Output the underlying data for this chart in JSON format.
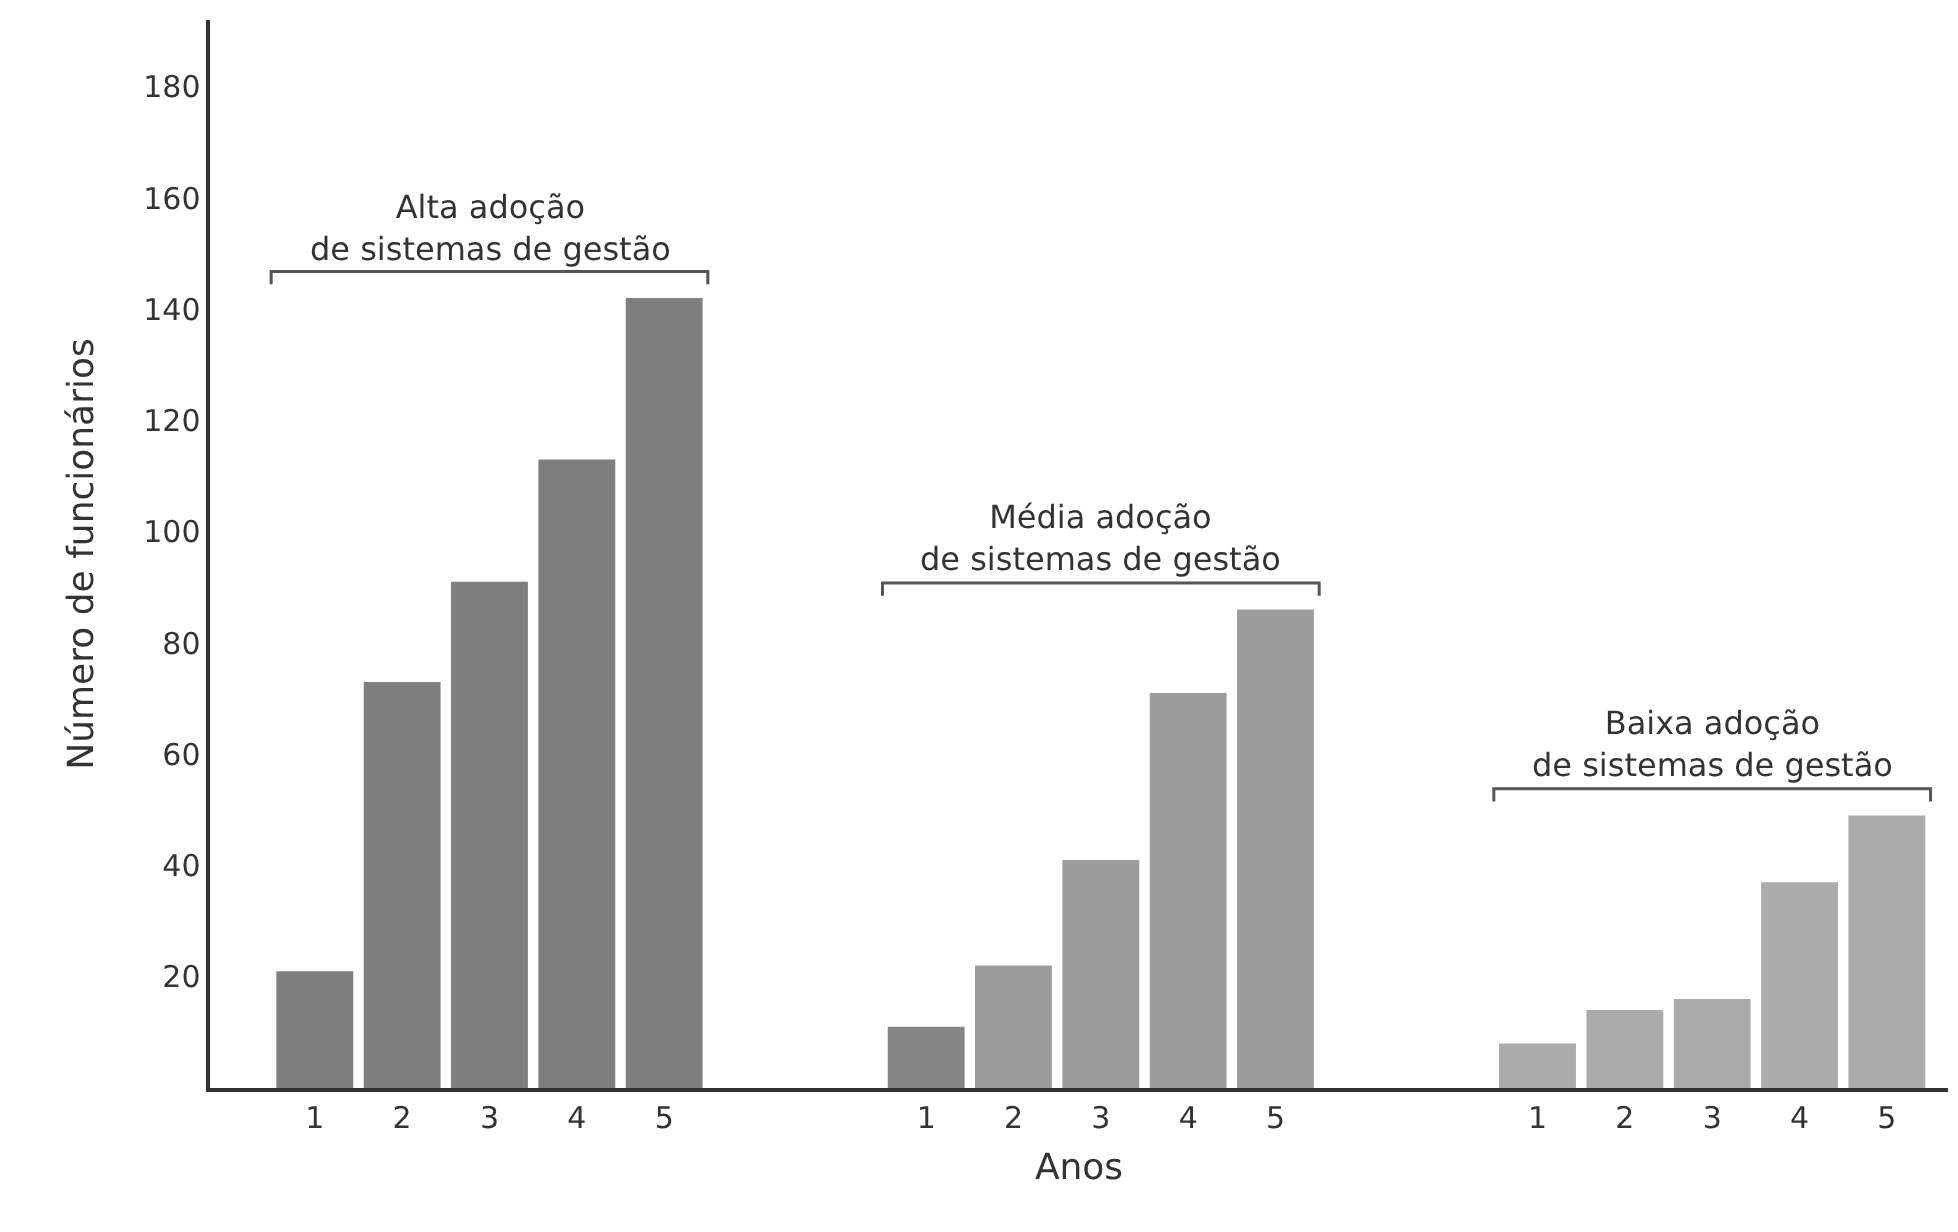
{
  "chart_data": {
    "type": "bar",
    "xlabel": "Anos",
    "ylabel": "Número de funcionários",
    "categories": [
      "1",
      "2",
      "3",
      "4",
      "5",
      null,
      null,
      "1",
      "2",
      "3",
      "4",
      "5",
      null,
      null,
      "1",
      "2",
      "3",
      "4",
      "5"
    ],
    "values": [
      21,
      73,
      91,
      113,
      142,
      null,
      null,
      11,
      22,
      41,
      71,
      86,
      null,
      null,
      8,
      14,
      16,
      37,
      49
    ],
    "colors": [
      "#7f7f7f",
      "#7f7f7f",
      "#7f7f7f",
      "#7f7f7f",
      "#7f7f7f",
      null,
      null,
      "#858585",
      "#9c9c9c",
      "#9c9c9c",
      "#9c9c9c",
      "#9c9c9c",
      null,
      null,
      "#ababab",
      "#ababab",
      "#ababab",
      "#ababab",
      "#ababab"
    ],
    "annotations": [
      "Alta adoção\nde sistemas de gestão",
      "Média adoção\nde sistemas de gestão",
      "Baixa adoção\nde sistemas de gestão"
    ],
    "ylim": [
      0,
      192
    ],
    "yticks": [
      20,
      40,
      60,
      80,
      100,
      120,
      140,
      160,
      180
    ]
  }
}
